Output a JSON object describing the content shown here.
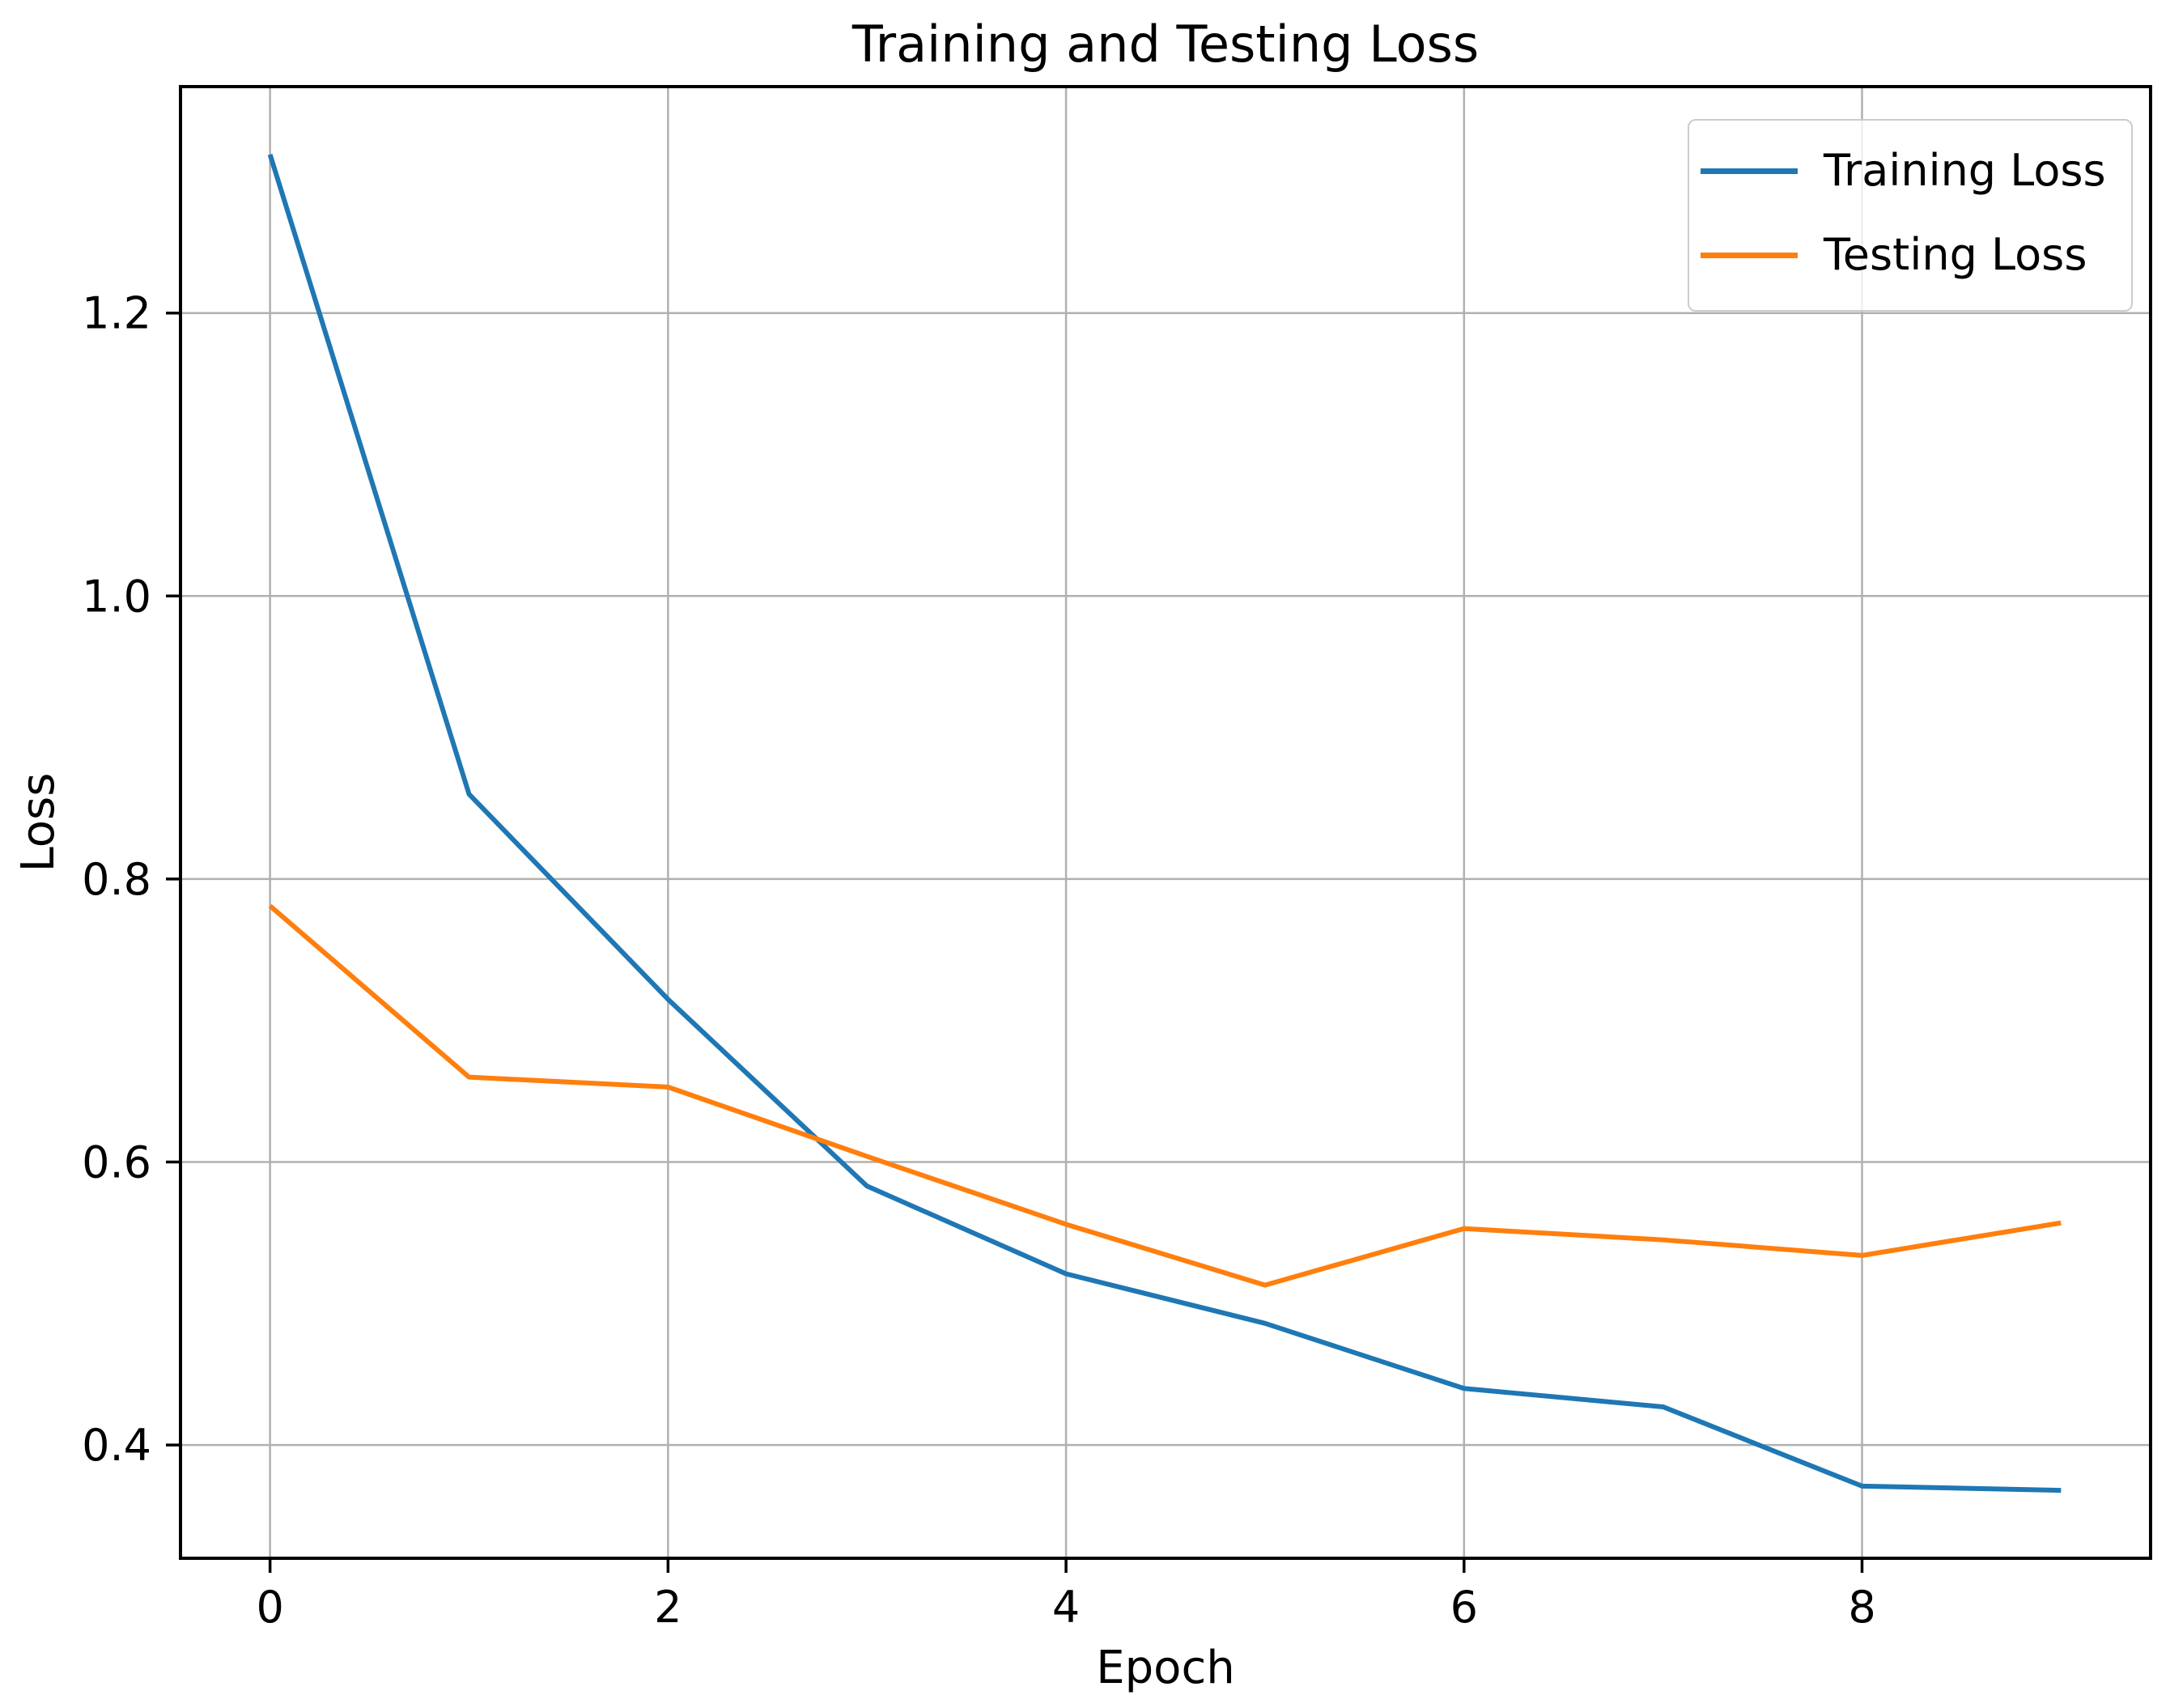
{
  "figure": {
    "background": "#ffffff",
    "text_color": "#000000",
    "spine_color": "#000000"
  },
  "chart_data": {
    "type": "line",
    "title": "Training and Testing Loss",
    "xlabel": "Epoch",
    "ylabel": "Loss",
    "x": [
      0,
      1,
      2,
      3,
      4,
      5,
      6,
      7,
      8,
      9
    ],
    "series": [
      {
        "name": "Training Loss",
        "color": "#1f77b4",
        "values": [
          1.312,
          0.86,
          0.715,
          0.583,
          0.521,
          0.486,
          0.44,
          0.427,
          0.371,
          0.368
        ]
      },
      {
        "name": "Testing Loss",
        "color": "#ff7f0e",
        "values": [
          0.781,
          0.66,
          0.653,
          0.604,
          0.556,
          0.513,
          0.553,
          0.545,
          0.534,
          0.557
        ]
      }
    ],
    "xlim": [
      -0.45,
      9.45
    ],
    "ylim": [
      0.32,
      1.36
    ],
    "xticks": {
      "values": [
        0,
        2,
        4,
        6,
        8
      ],
      "labels": [
        "0",
        "2",
        "4",
        "6",
        "8"
      ]
    },
    "yticks": {
      "values": [
        0.4,
        0.6,
        0.8,
        1.0,
        1.2
      ],
      "labels": [
        "0.4",
        "0.6",
        "0.8",
        "1.0",
        "1.2"
      ]
    },
    "grid": true,
    "grid_color": "#b0b0b0",
    "legend_position": "upper right"
  },
  "legend": {
    "items": [
      {
        "label": "Training Loss",
        "color": "#1f77b4"
      },
      {
        "label": "Testing Loss",
        "color": "#ff7f0e"
      }
    ]
  }
}
